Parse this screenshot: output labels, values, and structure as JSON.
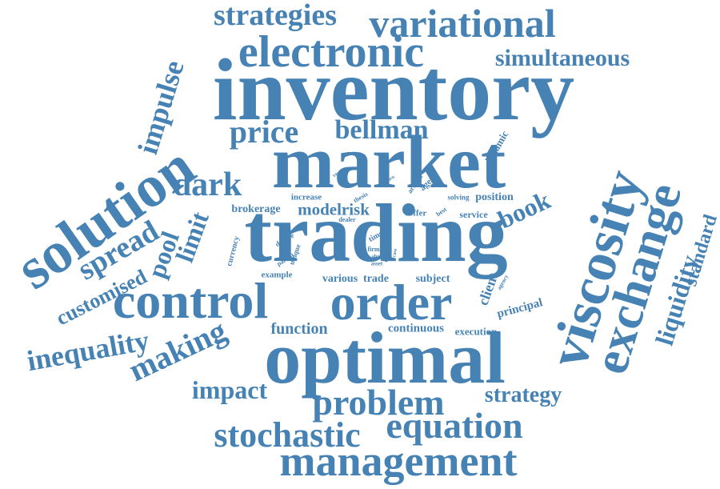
{
  "cloud": {
    "color": "#4682b4",
    "words": [
      {
        "text": "inventory"
      },
      {
        "text": "market"
      },
      {
        "text": "trading"
      },
      {
        "text": "optimal"
      },
      {
        "text": "viscosity"
      },
      {
        "text": "solution"
      },
      {
        "text": "exchange"
      },
      {
        "text": "control"
      },
      {
        "text": "order"
      },
      {
        "text": "management"
      },
      {
        "text": "electronic"
      },
      {
        "text": "variational"
      },
      {
        "text": "problem"
      },
      {
        "text": "stochastic"
      },
      {
        "text": "equation"
      },
      {
        "text": "strategies"
      },
      {
        "text": "simultaneous"
      },
      {
        "text": "impulse"
      },
      {
        "text": "price"
      },
      {
        "text": "bellman"
      },
      {
        "text": "dark"
      },
      {
        "text": "spread"
      },
      {
        "text": "pool"
      },
      {
        "text": "limit"
      },
      {
        "text": "book"
      },
      {
        "text": "liquidity"
      },
      {
        "text": "standard"
      },
      {
        "text": "inequality"
      },
      {
        "text": "making"
      },
      {
        "text": "customised"
      },
      {
        "text": "impact"
      },
      {
        "text": "strategy"
      },
      {
        "text": "function"
      },
      {
        "text": "continuous"
      },
      {
        "text": "execution"
      },
      {
        "text": "principal"
      },
      {
        "text": "client"
      },
      {
        "text": "modelrisk"
      },
      {
        "text": "brokerage"
      },
      {
        "text": "increase"
      },
      {
        "text": "offer"
      },
      {
        "text": "service"
      },
      {
        "text": "position"
      },
      {
        "text": "solving"
      },
      {
        "text": "agent"
      },
      {
        "text": "arrival"
      },
      {
        "text": "dynamic"
      },
      {
        "text": "example"
      },
      {
        "text": "various"
      },
      {
        "text": "trade"
      },
      {
        "text": "subject"
      },
      {
        "text": "currency"
      },
      {
        "text": "degree"
      },
      {
        "text": "unique"
      },
      {
        "text": "partial"
      },
      {
        "text": "dealer"
      },
      {
        "text": "time"
      },
      {
        "text": "firm"
      },
      {
        "text": "share"
      },
      {
        "text": "asset"
      },
      {
        "text": "thesis"
      },
      {
        "text": "venue"
      },
      {
        "text": "best"
      },
      {
        "text": "agency"
      },
      {
        "text": "derive"
      },
      {
        "text": "size"
      },
      {
        "text": "case"
      },
      {
        "text": "earn"
      }
    ]
  }
}
